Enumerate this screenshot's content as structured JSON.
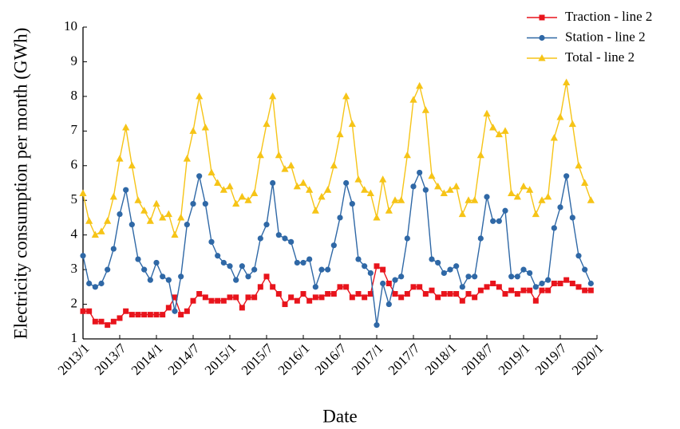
{
  "chart_data": {
    "type": "line",
    "x_label": "Date",
    "y_label": "Electricity consumption per month (GWh)",
    "x": [
      "2013/1",
      "2013/2",
      "2013/3",
      "2013/4",
      "2013/5",
      "2013/6",
      "2013/7",
      "2013/8",
      "2013/9",
      "2013/10",
      "2013/11",
      "2013/12",
      "2014/1",
      "2014/2",
      "2014/3",
      "2014/4",
      "2014/5",
      "2014/6",
      "2014/7",
      "2014/8",
      "2014/9",
      "2014/10",
      "2014/11",
      "2014/12",
      "2015/1",
      "2015/2",
      "2015/3",
      "2015/4",
      "2015/5",
      "2015/6",
      "2015/7",
      "2015/8",
      "2015/9",
      "2015/10",
      "2015/11",
      "2015/12",
      "2016/1",
      "2016/2",
      "2016/3",
      "2016/4",
      "2016/5",
      "2016/6",
      "2016/7",
      "2016/8",
      "2016/9",
      "2016/10",
      "2016/11",
      "2016/12",
      "2017/1",
      "2017/2",
      "2017/3",
      "2017/4",
      "2017/5",
      "2017/6",
      "2017/7",
      "2017/8",
      "2017/9",
      "2017/10",
      "2017/11",
      "2017/12",
      "2018/1",
      "2018/2",
      "2018/3",
      "2018/4",
      "2018/5",
      "2018/6",
      "2018/7",
      "2018/8",
      "2018/9",
      "2018/10",
      "2018/11",
      "2018/12",
      "2019/1",
      "2019/2",
      "2019/3",
      "2019/4",
      "2019/5",
      "2019/6",
      "2019/7",
      "2019/8",
      "2019/9",
      "2019/10",
      "2019/11",
      "2019/12"
    ],
    "xlim": [
      "2013/1",
      "2020/1"
    ],
    "xticks": [
      "2013/1",
      "2013/7",
      "2014/1",
      "2014/7",
      "2015/1",
      "2015/7",
      "2016/1",
      "2016/7",
      "2017/1",
      "2017/7",
      "2018/1",
      "2018/7",
      "2019/1",
      "2019/7",
      "2020/1"
    ],
    "ylim": [
      1,
      10
    ],
    "yticks": [
      1,
      2,
      3,
      4,
      5,
      6,
      7,
      8,
      9,
      10
    ],
    "legend": "upper right",
    "series": [
      {
        "name": "Traction - line 2",
        "color": "#e8141c",
        "marker": "square",
        "values": [
          1.8,
          1.8,
          1.5,
          1.5,
          1.4,
          1.5,
          1.6,
          1.8,
          1.7,
          1.7,
          1.7,
          1.7,
          1.7,
          1.7,
          1.9,
          2.2,
          1.7,
          1.8,
          2.1,
          2.3,
          2.2,
          2.1,
          2.1,
          2.1,
          2.2,
          2.2,
          1.9,
          2.2,
          2.2,
          2.5,
          2.8,
          2.5,
          2.3,
          2.0,
          2.2,
          2.1,
          2.3,
          2.1,
          2.2,
          2.2,
          2.3,
          2.3,
          2.5,
          2.5,
          2.2,
          2.3,
          2.2,
          2.3,
          3.1,
          3.0,
          2.6,
          2.3,
          2.2,
          2.3,
          2.5,
          2.5,
          2.3,
          2.4,
          2.2,
          2.3,
          2.3,
          2.3,
          2.1,
          2.3,
          2.2,
          2.4,
          2.5,
          2.6,
          2.5,
          2.3,
          2.4,
          2.3,
          2.4,
          2.4,
          2.1,
          2.4,
          2.4,
          2.6,
          2.6,
          2.7,
          2.6,
          2.5,
          2.4,
          2.4
        ]
      },
      {
        "name": "Station - line 2",
        "color": "#2f68a6",
        "marker": "circle",
        "values": [
          3.4,
          2.6,
          2.5,
          2.6,
          3.0,
          3.6,
          4.6,
          5.3,
          4.3,
          3.3,
          3.0,
          2.7,
          3.2,
          2.8,
          2.7,
          1.8,
          2.8,
          4.3,
          4.9,
          5.7,
          4.9,
          3.8,
          3.4,
          3.2,
          3.1,
          2.7,
          3.1,
          2.8,
          3.0,
          3.9,
          4.3,
          5.5,
          4.0,
          3.9,
          3.8,
          3.2,
          3.2,
          3.3,
          2.5,
          3.0,
          3.0,
          3.7,
          4.5,
          5.5,
          4.9,
          3.3,
          3.1,
          2.9,
          1.4,
          2.6,
          2.0,
          2.7,
          2.8,
          3.9,
          5.4,
          5.8,
          5.3,
          3.3,
          3.2,
          2.9,
          3.0,
          3.1,
          2.5,
          2.8,
          2.8,
          3.9,
          5.1,
          4.4,
          4.4,
          4.7,
          2.8,
          2.8,
          3.0,
          2.9,
          2.5,
          2.6,
          2.7,
          4.2,
          4.8,
          5.7,
          4.5,
          3.4,
          3.0,
          2.6
        ]
      },
      {
        "name": "Total - line 2",
        "color": "#f6c417",
        "marker": "triangle",
        "values": [
          5.2,
          4.4,
          4.0,
          4.1,
          4.4,
          5.1,
          6.2,
          7.1,
          6.0,
          5.0,
          4.7,
          4.4,
          4.9,
          4.5,
          4.6,
          4.0,
          4.5,
          6.2,
          7.0,
          8.0,
          7.1,
          5.8,
          5.5,
          5.3,
          5.4,
          4.9,
          5.1,
          5.0,
          5.2,
          6.3,
          7.2,
          8.0,
          6.3,
          5.9,
          6.0,
          5.4,
          5.5,
          5.3,
          4.7,
          5.1,
          5.3,
          6.0,
          6.9,
          8.0,
          7.2,
          5.6,
          5.3,
          5.2,
          4.5,
          5.6,
          4.7,
          5.0,
          5.0,
          6.3,
          7.9,
          8.3,
          7.6,
          5.7,
          5.4,
          5.2,
          5.3,
          5.4,
          4.6,
          5.0,
          5.0,
          6.3,
          7.5,
          7.1,
          6.9,
          7.0,
          5.2,
          5.1,
          5.4,
          5.3,
          4.6,
          5.0,
          5.1,
          6.8,
          7.4,
          8.4,
          7.2,
          6.0,
          5.5,
          5.0
        ]
      }
    ]
  }
}
